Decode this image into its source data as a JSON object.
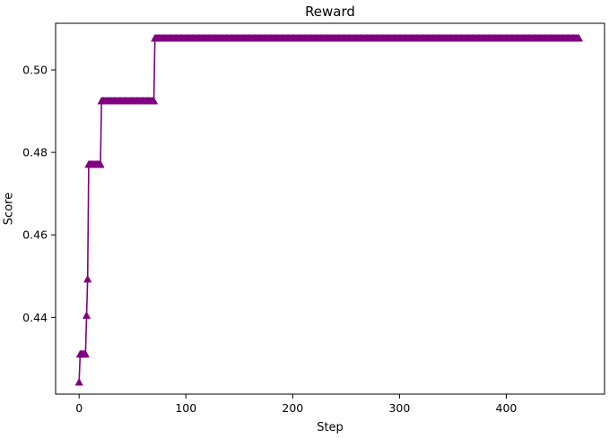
{
  "chart_data": {
    "type": "line",
    "title": "Reward",
    "xlabel": "Step",
    "ylabel": "Score",
    "xlim": [
      -22,
      492
    ],
    "ylim": [
      0.4214,
      0.5113
    ],
    "xticks": [
      0,
      100,
      200,
      300,
      400
    ],
    "yticks": [
      0.44,
      0.46,
      0.48,
      0.5
    ],
    "ytick_labels": [
      "0.44",
      "0.46",
      "0.48",
      "0.50"
    ],
    "grid": false,
    "legend": "none",
    "series": [
      {
        "color": "#800080",
        "marker": "triangle-up",
        "segments": [
          {
            "x_start": 0,
            "x_end": 0,
            "y": 0.4243
          },
          {
            "x_start": 1,
            "x_end": 6,
            "y": 0.4311
          },
          {
            "x_start": 7,
            "x_end": 7,
            "y": 0.4405
          },
          {
            "x_start": 8,
            "x_end": 8,
            "y": 0.4493
          },
          {
            "x_start": 9,
            "x_end": 20,
            "y": 0.4771
          },
          {
            "x_start": 21,
            "x_end": 70,
            "y": 0.4925
          },
          {
            "x_start": 71,
            "x_end": 468,
            "y": 0.5077
          }
        ]
      }
    ]
  }
}
